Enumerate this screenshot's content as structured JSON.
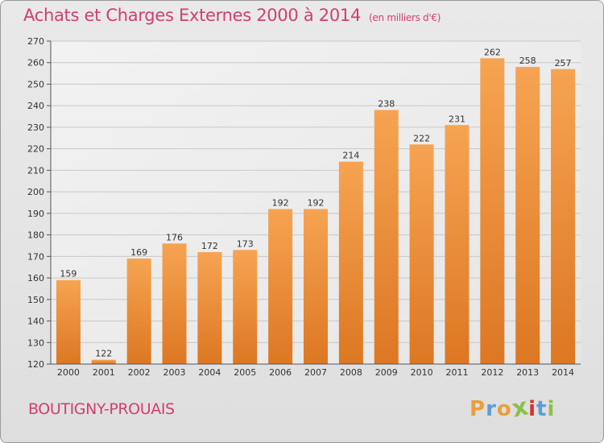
{
  "header": {
    "title": "Achats et Charges Externes 2000 à 2014",
    "unit": "(en milliers d'€)"
  },
  "footer": {
    "commune": "BOUTIGNY-PROUAIS",
    "brand": "Proxiti"
  },
  "colors": {
    "title": "#d13f6d",
    "bar_light": "#f6a452",
    "bar_dark": "#dd7722",
    "brand_letters": [
      "#e8a03a",
      "#5a9fd6",
      "#e8a03a",
      "#8dc04a",
      "#d8322c",
      "#5a9fd6",
      "#8dc04a"
    ]
  },
  "chart_data": {
    "type": "bar",
    "title": "Achats et Charges Externes 2000 à 2014",
    "subtitle": "(en milliers d'€)",
    "categories": [
      "2000",
      "2001",
      "2002",
      "2003",
      "2004",
      "2005",
      "2006",
      "2007",
      "2008",
      "2009",
      "2010",
      "2011",
      "2012",
      "2013",
      "2014"
    ],
    "values": [
      159,
      122,
      169,
      176,
      172,
      173,
      192,
      192,
      214,
      238,
      222,
      231,
      262,
      258,
      257
    ],
    "ylim": [
      120,
      270
    ],
    "yticks": [
      120,
      130,
      140,
      150,
      160,
      170,
      180,
      190,
      200,
      210,
      220,
      230,
      240,
      250,
      260,
      270
    ],
    "grid": true,
    "xlabel": "",
    "ylabel": ""
  }
}
